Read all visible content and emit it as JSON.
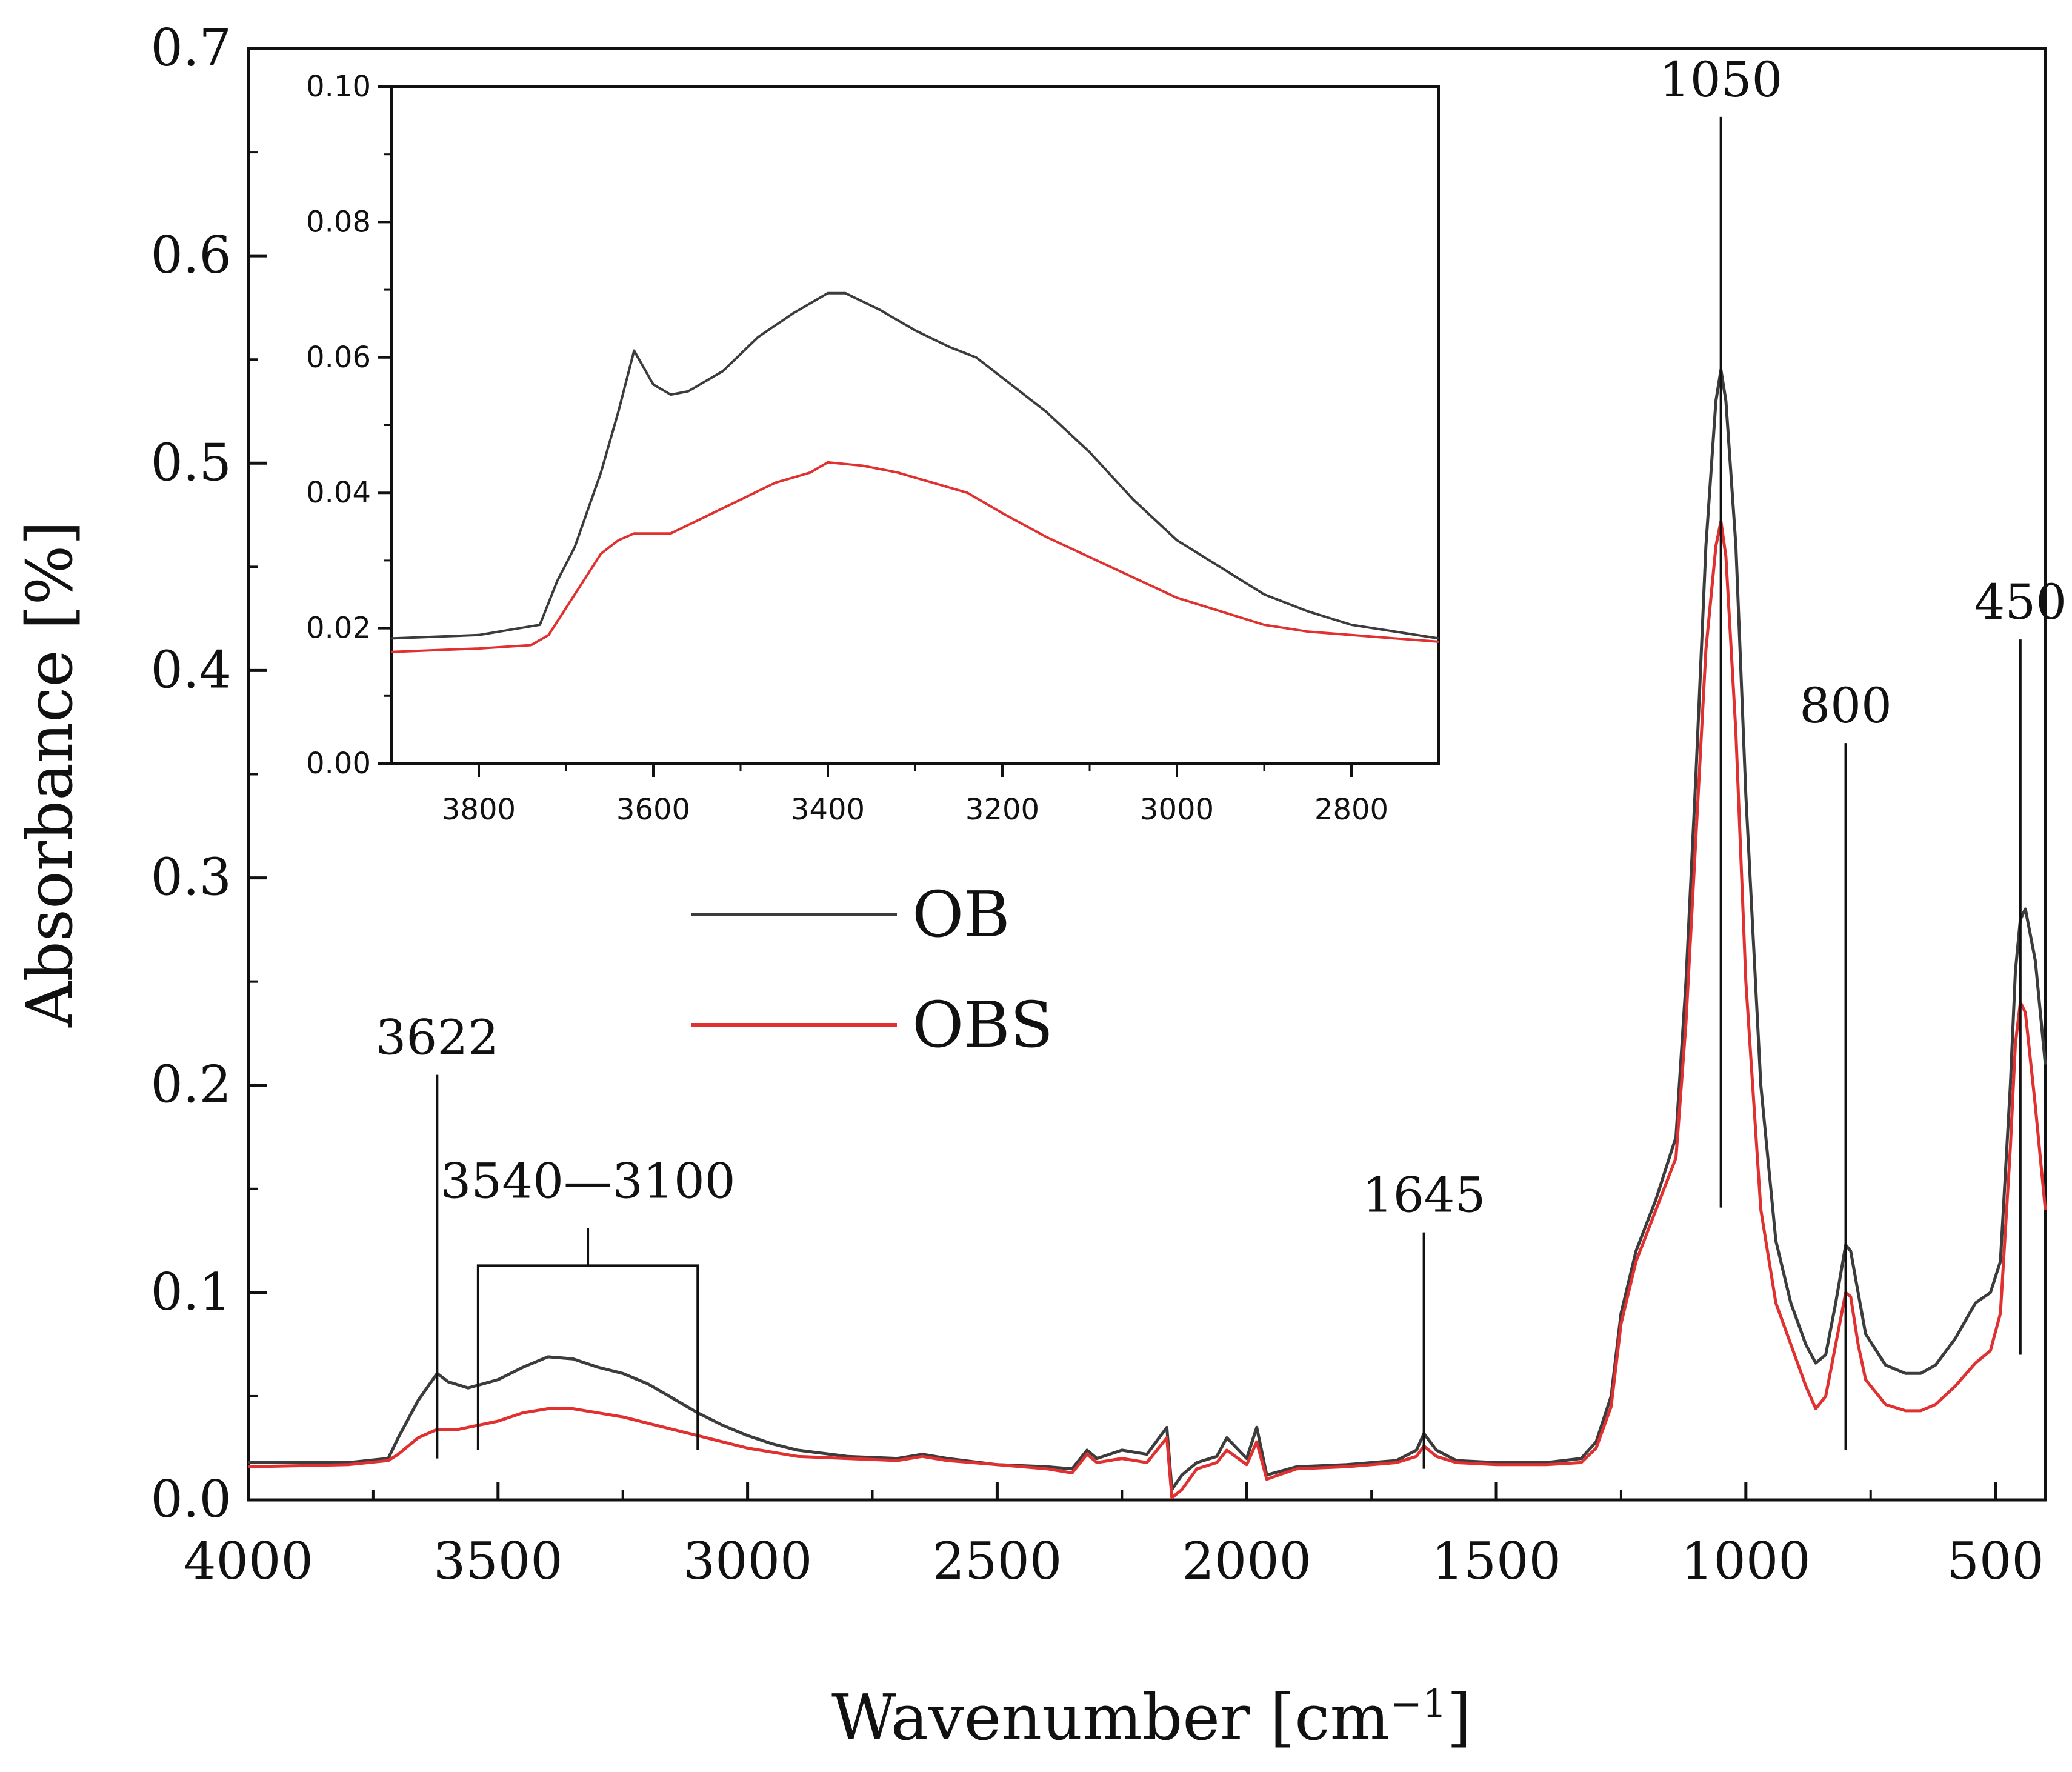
{
  "chart_data": {
    "type": "line",
    "xlabel": "Wavenumber [cm",
    "xlabel_sup": "−1",
    "xlabel_close": "]",
    "ylabel": "Absorbance [%]",
    "xlim": [
      4000,
      400
    ],
    "ylim": [
      0.0,
      0.7
    ],
    "x_ticks": [
      4000,
      3500,
      3000,
      2500,
      2000,
      1500,
      1000,
      500
    ],
    "x_tick_labels": [
      "4000",
      "3500",
      "3000",
      "2500",
      "2000",
      "1500",
      "1000",
      "500"
    ],
    "y_ticks": [
      0.0,
      0.1,
      0.2,
      0.3,
      0.4,
      0.5,
      0.6,
      0.7
    ],
    "y_tick_labels": [
      "0.0",
      "0.1",
      "0.2",
      "0.3",
      "0.4",
      "0.5",
      "0.6",
      "0.7"
    ],
    "legend_position": "center-left",
    "series": [
      {
        "name": "OB",
        "color": "#3c3c3c",
        "points": [
          [
            4000,
            0.018
          ],
          [
            3800,
            0.018
          ],
          [
            3720,
            0.02
          ],
          [
            3700,
            0.03
          ],
          [
            3660,
            0.048
          ],
          [
            3622,
            0.061
          ],
          [
            3600,
            0.057
          ],
          [
            3560,
            0.054
          ],
          [
            3500,
            0.058
          ],
          [
            3450,
            0.064
          ],
          [
            3400,
            0.069
          ],
          [
            3350,
            0.068
          ],
          [
            3300,
            0.064
          ],
          [
            3250,
            0.061
          ],
          [
            3200,
            0.056
          ],
          [
            3150,
            0.049
          ],
          [
            3100,
            0.042
          ],
          [
            3050,
            0.036
          ],
          [
            3000,
            0.031
          ],
          [
            2950,
            0.027
          ],
          [
            2900,
            0.024
          ],
          [
            2800,
            0.021
          ],
          [
            2700,
            0.02
          ],
          [
            2650,
            0.022
          ],
          [
            2600,
            0.02
          ],
          [
            2500,
            0.017
          ],
          [
            2400,
            0.016
          ],
          [
            2350,
            0.015
          ],
          [
            2320,
            0.024
          ],
          [
            2300,
            0.02
          ],
          [
            2250,
            0.024
          ],
          [
            2200,
            0.022
          ],
          [
            2160,
            0.035
          ],
          [
            2150,
            0.005
          ],
          [
            2130,
            0.012
          ],
          [
            2100,
            0.018
          ],
          [
            2060,
            0.021
          ],
          [
            2040,
            0.03
          ],
          [
            2000,
            0.02
          ],
          [
            1980,
            0.035
          ],
          [
            1960,
            0.012
          ],
          [
            1900,
            0.016
          ],
          [
            1800,
            0.017
          ],
          [
            1700,
            0.019
          ],
          [
            1660,
            0.024
          ],
          [
            1645,
            0.032
          ],
          [
            1620,
            0.024
          ],
          [
            1580,
            0.019
          ],
          [
            1500,
            0.018
          ],
          [
            1400,
            0.018
          ],
          [
            1330,
            0.02
          ],
          [
            1300,
            0.028
          ],
          [
            1270,
            0.05
          ],
          [
            1250,
            0.09
          ],
          [
            1220,
            0.12
          ],
          [
            1180,
            0.145
          ],
          [
            1140,
            0.175
          ],
          [
            1120,
            0.25
          ],
          [
            1100,
            0.35
          ],
          [
            1080,
            0.46
          ],
          [
            1060,
            0.53
          ],
          [
            1050,
            0.545
          ],
          [
            1040,
            0.53
          ],
          [
            1020,
            0.46
          ],
          [
            1000,
            0.34
          ],
          [
            970,
            0.2
          ],
          [
            940,
            0.125
          ],
          [
            910,
            0.095
          ],
          [
            880,
            0.075
          ],
          [
            860,
            0.066
          ],
          [
            840,
            0.07
          ],
          [
            820,
            0.095
          ],
          [
            800,
            0.123
          ],
          [
            790,
            0.12
          ],
          [
            775,
            0.1
          ],
          [
            760,
            0.08
          ],
          [
            720,
            0.065
          ],
          [
            680,
            0.061
          ],
          [
            650,
            0.061
          ],
          [
            620,
            0.065
          ],
          [
            580,
            0.078
          ],
          [
            540,
            0.095
          ],
          [
            510,
            0.1
          ],
          [
            490,
            0.115
          ],
          [
            470,
            0.2
          ],
          [
            460,
            0.255
          ],
          [
            450,
            0.28
          ],
          [
            440,
            0.285
          ],
          [
            420,
            0.26
          ],
          [
            400,
            0.21
          ]
        ]
      },
      {
        "name": "OBS",
        "color": "#e03030",
        "points": [
          [
            4000,
            0.016
          ],
          [
            3800,
            0.017
          ],
          [
            3720,
            0.019
          ],
          [
            3700,
            0.022
          ],
          [
            3660,
            0.03
          ],
          [
            3622,
            0.034
          ],
          [
            3580,
            0.034
          ],
          [
            3500,
            0.038
          ],
          [
            3450,
            0.042
          ],
          [
            3400,
            0.044
          ],
          [
            3350,
            0.044
          ],
          [
            3300,
            0.042
          ],
          [
            3250,
            0.04
          ],
          [
            3200,
            0.037
          ],
          [
            3150,
            0.034
          ],
          [
            3100,
            0.031
          ],
          [
            3050,
            0.028
          ],
          [
            3000,
            0.025
          ],
          [
            2950,
            0.023
          ],
          [
            2900,
            0.021
          ],
          [
            2800,
            0.02
          ],
          [
            2700,
            0.019
          ],
          [
            2650,
            0.021
          ],
          [
            2600,
            0.019
          ],
          [
            2500,
            0.017
          ],
          [
            2400,
            0.015
          ],
          [
            2350,
            0.013
          ],
          [
            2320,
            0.022
          ],
          [
            2300,
            0.018
          ],
          [
            2250,
            0.02
          ],
          [
            2200,
            0.018
          ],
          [
            2160,
            0.03
          ],
          [
            2150,
            0.001
          ],
          [
            2130,
            0.005
          ],
          [
            2100,
            0.015
          ],
          [
            2060,
            0.018
          ],
          [
            2040,
            0.024
          ],
          [
            2000,
            0.017
          ],
          [
            1980,
            0.028
          ],
          [
            1960,
            0.01
          ],
          [
            1900,
            0.015
          ],
          [
            1800,
            0.016
          ],
          [
            1700,
            0.018
          ],
          [
            1660,
            0.021
          ],
          [
            1645,
            0.026
          ],
          [
            1620,
            0.021
          ],
          [
            1580,
            0.018
          ],
          [
            1500,
            0.017
          ],
          [
            1400,
            0.017
          ],
          [
            1330,
            0.018
          ],
          [
            1300,
            0.025
          ],
          [
            1270,
            0.045
          ],
          [
            1250,
            0.085
          ],
          [
            1220,
            0.115
          ],
          [
            1180,
            0.14
          ],
          [
            1140,
            0.165
          ],
          [
            1120,
            0.23
          ],
          [
            1100,
            0.32
          ],
          [
            1080,
            0.41
          ],
          [
            1060,
            0.46
          ],
          [
            1050,
            0.472
          ],
          [
            1040,
            0.455
          ],
          [
            1020,
            0.37
          ],
          [
            1000,
            0.25
          ],
          [
            970,
            0.14
          ],
          [
            940,
            0.095
          ],
          [
            910,
            0.075
          ],
          [
            880,
            0.055
          ],
          [
            860,
            0.044
          ],
          [
            840,
            0.05
          ],
          [
            820,
            0.075
          ],
          [
            800,
            0.1
          ],
          [
            790,
            0.098
          ],
          [
            775,
            0.075
          ],
          [
            760,
            0.058
          ],
          [
            720,
            0.046
          ],
          [
            680,
            0.043
          ],
          [
            650,
            0.043
          ],
          [
            620,
            0.046
          ],
          [
            580,
            0.055
          ],
          [
            540,
            0.066
          ],
          [
            510,
            0.072
          ],
          [
            490,
            0.09
          ],
          [
            470,
            0.17
          ],
          [
            460,
            0.22
          ],
          [
            450,
            0.24
          ],
          [
            440,
            0.235
          ],
          [
            420,
            0.19
          ],
          [
            400,
            0.14
          ]
        ]
      }
    ],
    "annotations": [
      {
        "label": "3622",
        "x": 3622,
        "y_top": 0.205,
        "y_bottom": 0.02
      },
      {
        "label": "1645",
        "x": 1645,
        "y_top": 0.129,
        "y_bottom": 0.015
      },
      {
        "label": "1050",
        "x": 1050,
        "y_top": 0.667,
        "y_bottom": 0.141
      },
      {
        "label": "800",
        "x": 800,
        "y_top": 0.365,
        "y_bottom": 0.024
      },
      {
        "label": "450",
        "x": 450,
        "y_top": 0.415,
        "y_bottom": 0.07
      }
    ],
    "bracket": {
      "label": "3540—3100",
      "x_start": 3540,
      "x_end": 3100,
      "y_top": 0.113,
      "y_bottom": 0.024
    },
    "inset": {
      "type": "line",
      "xlim": [
        3900,
        2700
      ],
      "ylim": [
        0.0,
        0.1
      ],
      "x_ticks": [
        3800,
        3600,
        3400,
        3200,
        3000,
        2800
      ],
      "x_tick_labels": [
        "3800",
        "3600",
        "3400",
        "3200",
        "3000",
        "2800"
      ],
      "y_ticks": [
        0.0,
        0.02,
        0.04,
        0.06,
        0.08,
        0.1
      ],
      "y_tick_labels": [
        "0.00",
        "0.02",
        "0.04",
        "0.06",
        "0.08",
        "0.10"
      ],
      "series": [
        {
          "name": "OB",
          "color": "#3c3c3c",
          "points": [
            [
              3900,
              0.0185
            ],
            [
              3800,
              0.019
            ],
            [
              3730,
              0.0205
            ],
            [
              3710,
              0.027
            ],
            [
              3690,
              0.032
            ],
            [
              3660,
              0.043
            ],
            [
              3640,
              0.052
            ],
            [
              3622,
              0.061
            ],
            [
              3600,
              0.056
            ],
            [
              3580,
              0.0545
            ],
            [
              3560,
              0.055
            ],
            [
              3520,
              0.058
            ],
            [
              3480,
              0.063
            ],
            [
              3440,
              0.0665
            ],
            [
              3400,
              0.0695
            ],
            [
              3380,
              0.0695
            ],
            [
              3340,
              0.067
            ],
            [
              3300,
              0.064
            ],
            [
              3260,
              0.0615
            ],
            [
              3230,
              0.06
            ],
            [
              3200,
              0.057
            ],
            [
              3150,
              0.052
            ],
            [
              3100,
              0.046
            ],
            [
              3050,
              0.039
            ],
            [
              3000,
              0.033
            ],
            [
              2950,
              0.029
            ],
            [
              2900,
              0.025
            ],
            [
              2850,
              0.0225
            ],
            [
              2800,
              0.0205
            ],
            [
              2750,
              0.0195
            ],
            [
              2700,
              0.0185
            ]
          ]
        },
        {
          "name": "OBS",
          "color": "#e03030",
          "points": [
            [
              3900,
              0.0165
            ],
            [
              3800,
              0.017
            ],
            [
              3740,
              0.0175
            ],
            [
              3720,
              0.019
            ],
            [
              3700,
              0.023
            ],
            [
              3680,
              0.027
            ],
            [
              3660,
              0.031
            ],
            [
              3640,
              0.033
            ],
            [
              3622,
              0.034
            ],
            [
              3580,
              0.034
            ],
            [
              3540,
              0.0365
            ],
            [
              3500,
              0.039
            ],
            [
              3460,
              0.0415
            ],
            [
              3420,
              0.043
            ],
            [
              3400,
              0.0445
            ],
            [
              3360,
              0.044
            ],
            [
              3320,
              0.043
            ],
            [
              3280,
              0.0415
            ],
            [
              3240,
              0.04
            ],
            [
              3200,
              0.037
            ],
            [
              3150,
              0.0335
            ],
            [
              3100,
              0.0305
            ],
            [
              3050,
              0.0275
            ],
            [
              3000,
              0.0245
            ],
            [
              2950,
              0.0225
            ],
            [
              2900,
              0.0205
            ],
            [
              2850,
              0.0195
            ],
            [
              2800,
              0.019
            ],
            [
              2750,
              0.0185
            ],
            [
              2700,
              0.018
            ]
          ]
        }
      ]
    }
  }
}
